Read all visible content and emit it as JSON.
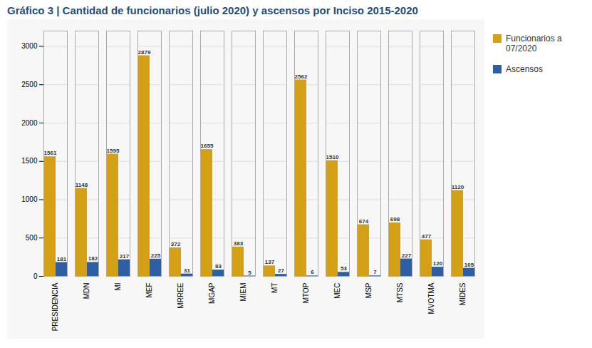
{
  "chart_data": {
    "type": "bar",
    "title": "Gráfico 3 | Cantidad de funcionarios (julio 2020) y ascensos por Inciso 2015-2020",
    "categories": [
      "PRESIDENCIA",
      "MDN",
      "MI",
      "MEF",
      "MRREE",
      "MGAP",
      "MIEM",
      "MT",
      "MTOP",
      "MEC",
      "MSP",
      "MTSS",
      "MVOTMA",
      "MIDES"
    ],
    "series": [
      {
        "name": "Funcionarios a\n07/2020",
        "color": "#D4A017",
        "values": [
          1561,
          1148,
          1595,
          2879,
          372,
          1655,
          383,
          137,
          2562,
          1510,
          674,
          698,
          477,
          1120
        ]
      },
      {
        "name": "Ascensos",
        "color": "#2E5FA3",
        "values": [
          181,
          182,
          217,
          225,
          31,
          83,
          5,
          27,
          6,
          53,
          7,
          227,
          120,
          105
        ]
      }
    ],
    "ylim": [
      0,
      3200
    ],
    "yticks": [
      0,
      500,
      1000,
      1500,
      2000,
      2500,
      3000
    ],
    "grid": true,
    "legend": "right",
    "data_labels": true
  }
}
